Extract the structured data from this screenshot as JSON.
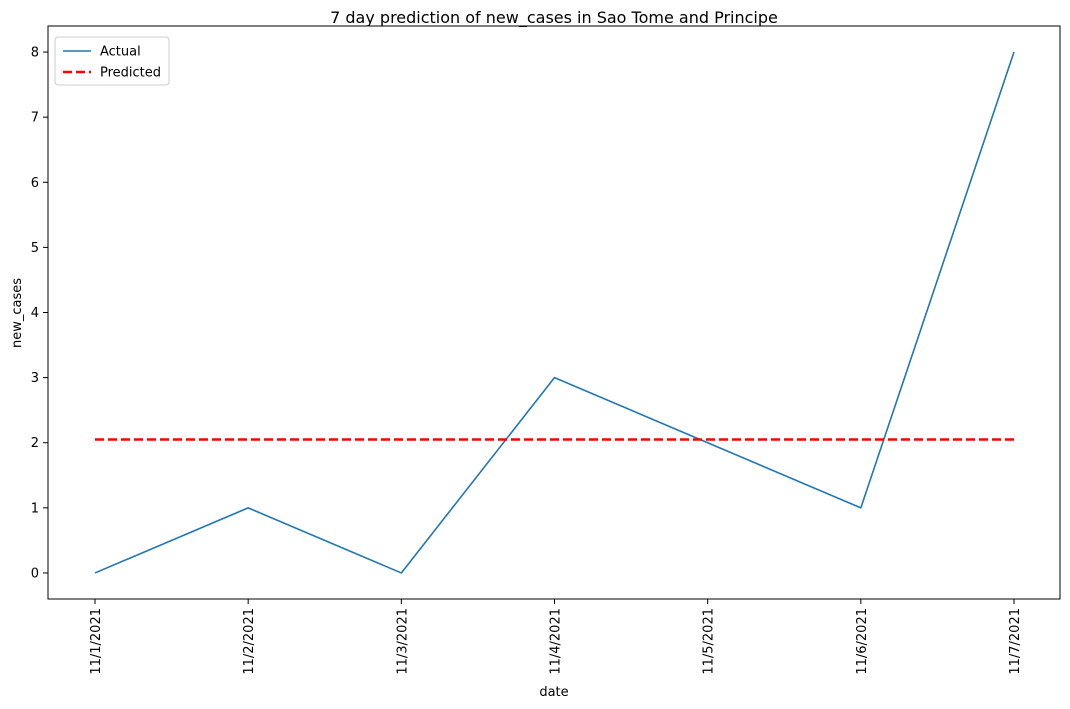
{
  "chart_data": {
    "type": "line",
    "title": "7 day prediction of new_cases in Sao Tome and Principe",
    "xlabel": "date",
    "ylabel": "new_cases",
    "x": [
      "11/1/2021",
      "11/2/2021",
      "11/3/2021",
      "11/4/2021",
      "11/5/2021",
      "11/6/2021",
      "11/7/2021"
    ],
    "series": [
      {
        "name": "Actual",
        "values": [
          0,
          1,
          0,
          3,
          2,
          1,
          8
        ],
        "color": "#1f77b4",
        "style": "solid"
      },
      {
        "name": "Predicted",
        "values": [
          2.05,
          2.05,
          2.05,
          2.05,
          2.05,
          2.05,
          2.05
        ],
        "color": "#ff0000",
        "style": "dashed"
      }
    ],
    "ylim": [
      -0.4,
      8.4
    ],
    "yticks": [
      "0",
      "1",
      "2",
      "3",
      "4",
      "5",
      "6",
      "7",
      "8"
    ],
    "grid": false,
    "legend_position": "top-left"
  }
}
